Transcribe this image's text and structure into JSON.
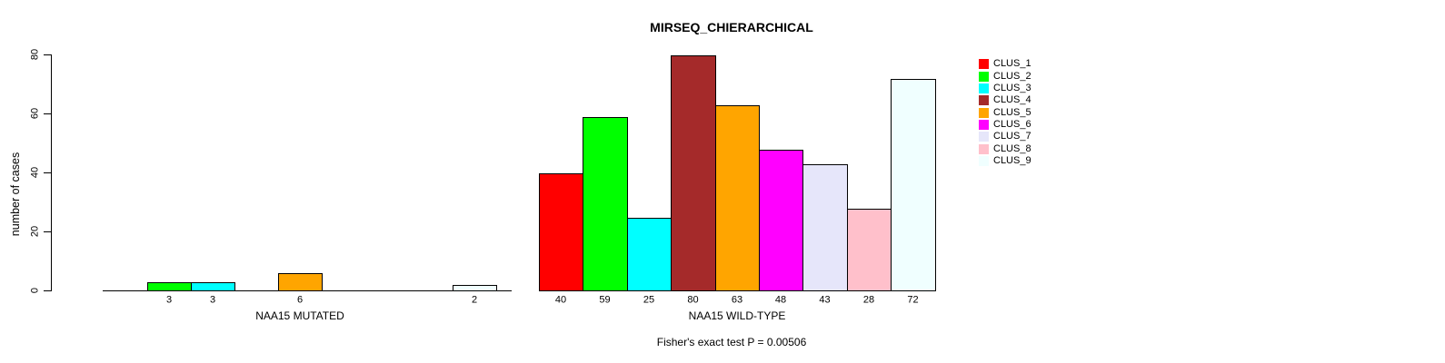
{
  "chart_data": {
    "type": "bar",
    "title": "MIRSEQ_CHIERARCHICAL",
    "ylabel": "number of cases",
    "xlabel": "",
    "ylim": [
      0,
      80
    ],
    "y_ticks": [
      0,
      20,
      40,
      60,
      80
    ],
    "grid": false,
    "legend_position": "right",
    "annotation": "Fisher's exact test P = 0.00506",
    "categories": [
      "CLUS_1",
      "CLUS_2",
      "CLUS_3",
      "CLUS_4",
      "CLUS_5",
      "CLUS_6",
      "CLUS_7",
      "CLUS_8",
      "CLUS_9"
    ],
    "colors": [
      "#FF0000",
      "#00FF00",
      "#00FFFF",
      "#A52A2A",
      "#FFA500",
      "#FF00FF",
      "#E6E6FA",
      "#FFC0CB",
      "#F0FFFF"
    ],
    "bar_border_color": "#000000",
    "value_labels_shown_for_nonzero_only": true,
    "groups": [
      {
        "label": "NAA15 MUTATED",
        "values": [
          0,
          3,
          3,
          0,
          6,
          0,
          0,
          0,
          2
        ]
      },
      {
        "label": "NAA15 WILD-TYPE",
        "values": [
          40,
          59,
          25,
          80,
          63,
          48,
          43,
          28,
          72
        ]
      }
    ]
  }
}
